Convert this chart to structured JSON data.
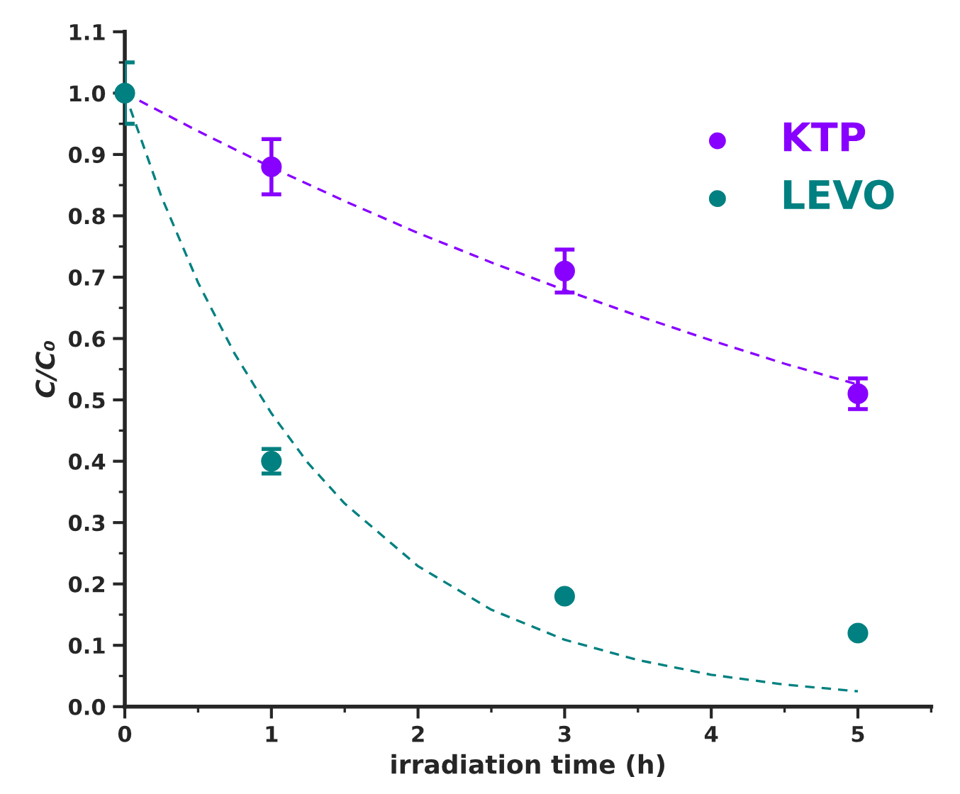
{
  "chart_data": {
    "type": "scatter",
    "xlabel": "irradiation time (h)",
    "ylabel": "C/C₀",
    "xlim": [
      0,
      5.5
    ],
    "xticks": [
      0,
      1,
      2,
      3,
      4,
      5
    ],
    "ylim": [
      0,
      1.1
    ],
    "yticks": [
      {
        "value": 0,
        "label": "0.0"
      },
      0.1,
      0.2,
      0.3,
      0.4,
      0.5,
      0.6,
      0.7,
      0.8,
      0.9,
      {
        "value": 1.0,
        "label": "1.0"
      },
      1.1
    ],
    "legend": "top right",
    "grid": false,
    "marker": "circle",
    "series": [
      {
        "name": "KTP",
        "color": "#8800ff",
        "x": [
          1,
          3,
          5
        ],
        "values": [
          0.88,
          0.71,
          0.51
        ],
        "errors": [
          0.045,
          0.035,
          0.025
        ]
      },
      {
        "name": "LEVO",
        "color": "#008080",
        "x": [
          0,
          1,
          3,
          5
        ],
        "values": [
          1.0,
          0.4,
          0.18,
          0.12
        ],
        "errors": [
          0.05,
          0.02,
          null,
          null
        ]
      },
      {
        "type": "line",
        "line_style": "dashed",
        "marker": "none",
        "color": "#8800ff",
        "x": [
          0,
          0.5,
          1,
          1.5,
          2,
          2.5,
          3,
          3.5,
          4,
          4.5,
          5
        ],
        "values": [
          1.0,
          0.938,
          0.879,
          0.824,
          0.772,
          0.724,
          0.679,
          0.637,
          0.597,
          0.559,
          0.525
        ]
      },
      {
        "type": "line",
        "line_style": "dashed",
        "marker": "none",
        "color": "#008080",
        "x": [
          0,
          0.25,
          0.5,
          0.75,
          1,
          1.25,
          1.5,
          2,
          2.5,
          3,
          3.5,
          4,
          4.5,
          5
        ],
        "values": [
          1.0,
          0.831,
          0.691,
          0.575,
          0.478,
          0.397,
          0.331,
          0.229,
          0.158,
          0.109,
          0.076,
          0.052,
          0.036,
          0.025
        ]
      }
    ]
  }
}
